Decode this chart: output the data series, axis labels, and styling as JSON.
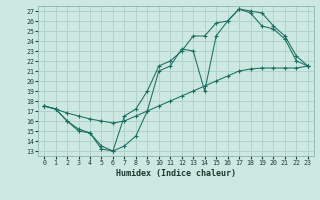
{
  "title": "",
  "xlabel": "Humidex (Indice chaleur)",
  "bg_color": "#cce8e0",
  "grid_color": "#b0d4cc",
  "line_color": "#1a6e60",
  "xlim": [
    -0.5,
    23.5
  ],
  "ylim": [
    12.5,
    27.5
  ],
  "xticks": [
    0,
    1,
    2,
    3,
    4,
    5,
    6,
    7,
    8,
    9,
    10,
    11,
    12,
    13,
    14,
    15,
    16,
    17,
    18,
    19,
    20,
    21,
    22,
    23
  ],
  "yticks": [
    13,
    14,
    15,
    16,
    17,
    18,
    19,
    20,
    21,
    22,
    23,
    24,
    25,
    26,
    27
  ],
  "line1_x": [
    0,
    1,
    2,
    3,
    4,
    5,
    6,
    7,
    8,
    9,
    10,
    11,
    12,
    13,
    14,
    15,
    16,
    17,
    18,
    19,
    20,
    21,
    22,
    23
  ],
  "line1_y": [
    17.5,
    17.2,
    16.0,
    15.2,
    14.8,
    13.2,
    13.0,
    13.5,
    14.5,
    17.0,
    21.0,
    21.5,
    23.2,
    23.0,
    19.0,
    24.5,
    26.0,
    27.2,
    27.0,
    26.8,
    25.5,
    24.5,
    22.5,
    21.5
  ],
  "line2_x": [
    0,
    1,
    2,
    3,
    4,
    5,
    6,
    7,
    8,
    9,
    10,
    11,
    12,
    13,
    14,
    15,
    16,
    17,
    18,
    19,
    20,
    21,
    22,
    23
  ],
  "line2_y": [
    17.5,
    17.2,
    16.0,
    15.0,
    14.8,
    13.5,
    13.0,
    16.5,
    17.2,
    19.0,
    21.5,
    22.0,
    23.0,
    24.5,
    24.5,
    25.8,
    26.0,
    27.2,
    26.8,
    25.5,
    25.2,
    24.2,
    22.0,
    21.5
  ],
  "line3_x": [
    0,
    1,
    2,
    3,
    4,
    5,
    6,
    7,
    8,
    9,
    10,
    11,
    12,
    13,
    14,
    15,
    16,
    17,
    18,
    19,
    20,
    21,
    22,
    23
  ],
  "line3_y": [
    17.5,
    17.2,
    16.8,
    16.5,
    16.2,
    16.0,
    15.8,
    16.0,
    16.5,
    17.0,
    17.5,
    18.0,
    18.5,
    19.0,
    19.5,
    20.0,
    20.5,
    21.0,
    21.2,
    21.3,
    21.3,
    21.3,
    21.3,
    21.5
  ]
}
